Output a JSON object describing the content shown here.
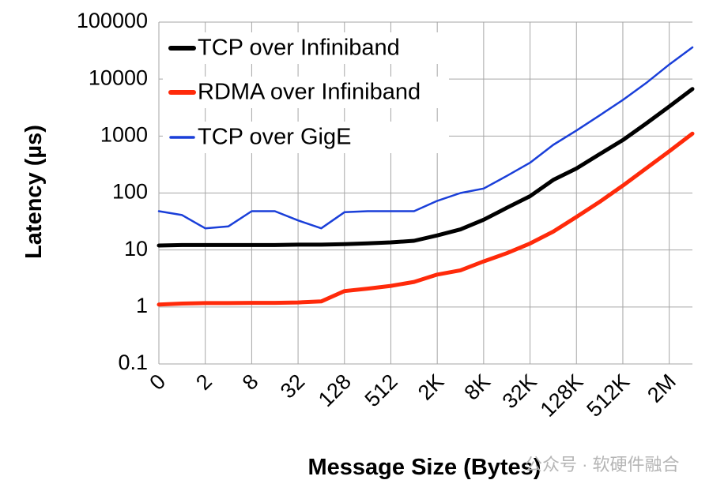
{
  "chart_data": {
    "type": "line",
    "ylabel": "Latency (µs)",
    "xlabel": "Message Size (Bytes)",
    "y_scale": "log",
    "ylim": [
      0.1,
      100000
    ],
    "y_ticks": [
      "100000",
      "10000",
      "1000",
      "100",
      "10",
      "1",
      "0.1"
    ],
    "x_tick_labels": [
      "0",
      "2",
      "8",
      "32",
      "128",
      "512",
      "2K",
      "8K",
      "32K",
      "128K",
      "512K",
      "2M"
    ],
    "x_domain_sizes": [
      "0",
      "1",
      "2",
      "4",
      "8",
      "16",
      "32",
      "64",
      "128",
      "256",
      "512",
      "1K",
      "2K",
      "4K",
      "8K",
      "16K",
      "32K",
      "64K",
      "128K",
      "256K",
      "512K",
      "1M",
      "2M",
      "4M"
    ],
    "grid": true,
    "legend_position": "top-left",
    "series": [
      {
        "name": "TCP over Infiniband",
        "color": "#000000",
        "width": 5,
        "values": [
          12,
          12.2,
          12.2,
          12.2,
          12.2,
          12.2,
          12.4,
          12.4,
          12.7,
          13.1,
          13.6,
          14.5,
          18,
          23,
          34,
          55,
          88,
          170,
          270,
          480,
          850,
          1650,
          3300,
          6700
        ]
      },
      {
        "name": "RDMA over Infiniband",
        "color": "#ff2a0a",
        "width": 5,
        "values": [
          1.1,
          1.15,
          1.17,
          1.17,
          1.18,
          1.18,
          1.2,
          1.25,
          1.9,
          2.1,
          2.35,
          2.75,
          3.7,
          4.4,
          6.3,
          8.8,
          13,
          21,
          38,
          70,
          135,
          270,
          540,
          1100
        ]
      },
      {
        "name": "TCP over GigE",
        "color": "#1a3fd9",
        "width": 2.5,
        "values": [
          48,
          41,
          24,
          26,
          48,
          48,
          33,
          24,
          46,
          48,
          48,
          48,
          73,
          100,
          120,
          200,
          340,
          700,
          1250,
          2300,
          4300,
          8500,
          18000,
          36000
        ]
      }
    ]
  },
  "watermark": "公众号 · 软硬件融合"
}
